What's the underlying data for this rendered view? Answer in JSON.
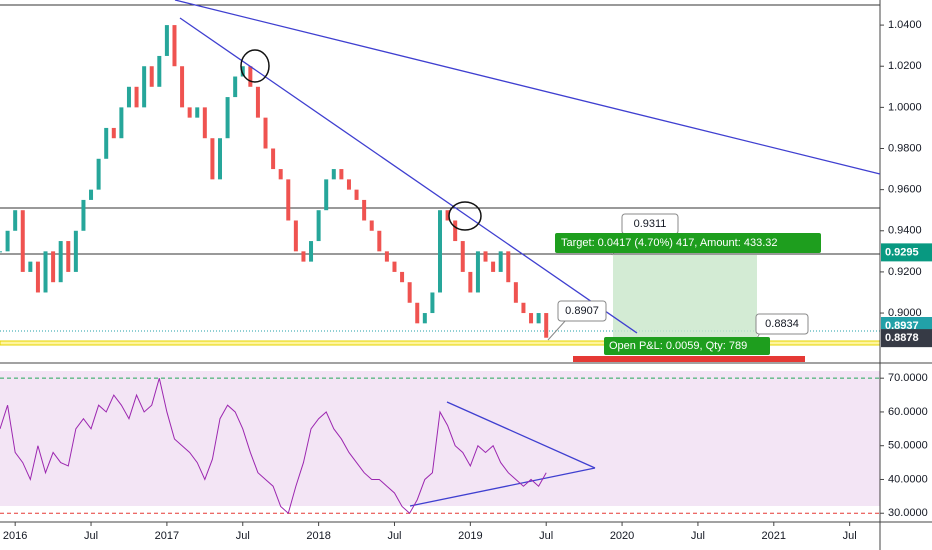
{
  "chart_data": [
    {
      "type": "candlestick",
      "x": [
        2015.9,
        2015.95,
        2016.0,
        2016.05,
        2016.1,
        2016.15,
        2016.2,
        2016.25,
        2016.3,
        2016.35,
        2016.4,
        2016.45,
        2016.5,
        2016.55,
        2016.6,
        2016.65,
        2016.7,
        2016.75,
        2016.8,
        2016.85,
        2016.9,
        2016.95,
        2017.0,
        2017.05,
        2017.1,
        2017.15,
        2017.2,
        2017.25,
        2017.3,
        2017.35,
        2017.4,
        2017.45,
        2017.5,
        2017.55,
        2017.6,
        2017.65,
        2017.7,
        2017.75,
        2017.8,
        2017.85,
        2017.9,
        2017.95,
        2018.0,
        2018.05,
        2018.1,
        2018.15,
        2018.2,
        2018.25,
        2018.3,
        2018.35,
        2018.4,
        2018.45,
        2018.5,
        2018.55,
        2018.6,
        2018.65,
        2018.7,
        2018.75,
        2018.8,
        2018.85,
        2018.9,
        2018.95,
        2019.0,
        2019.05,
        2019.1,
        2019.15,
        2019.2,
        2019.25,
        2019.3,
        2019.35,
        2019.4,
        2019.45,
        2019.5
      ],
      "values": [
        0.93,
        0.94,
        0.95,
        0.92,
        0.925,
        0.91,
        0.93,
        0.915,
        0.935,
        0.92,
        0.94,
        0.955,
        0.96,
        0.975,
        0.99,
        0.985,
        1.0,
        1.01,
        1.0,
        1.02,
        1.01,
        1.025,
        1.04,
        1.02,
        1.0,
        0.995,
        1.0,
        0.985,
        0.965,
        0.985,
        1.005,
        1.015,
        1.02,
        1.01,
        0.995,
        0.98,
        0.97,
        0.965,
        0.945,
        0.93,
        0.925,
        0.935,
        0.95,
        0.965,
        0.97,
        0.965,
        0.96,
        0.955,
        0.945,
        0.94,
        0.93,
        0.925,
        0.92,
        0.915,
        0.905,
        0.895,
        0.9,
        0.91,
        0.95,
        0.945,
        0.935,
        0.92,
        0.91,
        0.93,
        0.925,
        0.92,
        0.93,
        0.915,
        0.905,
        0.9,
        0.895,
        0.9,
        0.888
      ],
      "up_color": "#26a69a",
      "down_color": "#ef5350",
      "xlim": [
        2015.9,
        2021.7
      ],
      "ylim": [
        0.8762,
        1.0522
      ],
      "yticks": [
        {
          "value": 1.04,
          "label": "1.0400"
        },
        {
          "value": 1.02,
          "label": "1.0200"
        },
        {
          "value": 1.0,
          "label": "1.0000"
        },
        {
          "value": 0.98,
          "label": "0.9800"
        },
        {
          "value": 0.96,
          "label": "0.9600"
        },
        {
          "value": 0.94,
          "label": "0.9400"
        },
        {
          "value": 0.92,
          "label": "0.9200"
        },
        {
          "value": 0.9,
          "label": "0.9000"
        }
      ],
      "price_badges": [
        {
          "value": 0.9295,
          "color": "#089981"
        },
        {
          "value": 0.8937,
          "color": "#22a1a8"
        },
        {
          "value": 0.8878,
          "color": "#363a45"
        }
      ],
      "callouts": [
        0.9311,
        0.8907,
        0.8834
      ],
      "target_label": "Target: 0.0417 (4.70%) 417, Amount: 433.32",
      "pnl_label": "Open P&L: 0.0059, Qty: 789"
    },
    {
      "type": "line",
      "x": [
        2015.9,
        2015.95,
        2016.0,
        2016.05,
        2016.1,
        2016.15,
        2016.2,
        2016.25,
        2016.3,
        2016.35,
        2016.4,
        2016.45,
        2016.5,
        2016.55,
        2016.6,
        2016.65,
        2016.7,
        2016.75,
        2016.8,
        2016.85,
        2016.9,
        2016.95,
        2017.0,
        2017.05,
        2017.1,
        2017.15,
        2017.2,
        2017.25,
        2017.3,
        2017.35,
        2017.4,
        2017.45,
        2017.5,
        2017.55,
        2017.6,
        2017.65,
        2017.7,
        2017.75,
        2017.8,
        2017.85,
        2017.9,
        2017.95,
        2018.0,
        2018.05,
        2018.1,
        2018.15,
        2018.2,
        2018.25,
        2018.3,
        2018.35,
        2018.4,
        2018.45,
        2018.5,
        2018.55,
        2018.6,
        2018.65,
        2018.7,
        2018.75,
        2018.8,
        2018.85,
        2018.9,
        2018.95,
        2019.0,
        2019.05,
        2019.1,
        2019.15,
        2019.2,
        2019.25,
        2019.3,
        2019.35,
        2019.4,
        2019.45,
        2019.5
      ],
      "values": [
        55,
        62,
        48,
        45,
        40,
        50,
        42,
        48,
        45,
        44,
        55,
        58,
        55,
        62,
        60,
        65,
        62,
        58,
        65,
        60,
        62,
        70,
        60,
        52,
        50,
        48,
        45,
        40,
        46,
        58,
        62,
        60,
        55,
        48,
        42,
        40,
        38,
        32,
        30,
        38,
        45,
        55,
        58,
        60,
        55,
        52,
        48,
        45,
        42,
        40,
        40,
        38,
        36,
        32,
        30,
        34,
        40,
        42,
        60,
        56,
        50,
        48,
        44,
        50,
        48,
        50,
        45,
        42,
        40,
        38,
        40,
        38,
        42
      ],
      "color": "#9c27b0",
      "xlim": [
        2015.9,
        2021.7
      ],
      "ylim": [
        27.7,
        74.2
      ],
      "yticks": [
        {
          "value": 70,
          "label": "70.0000"
        },
        {
          "value": 60,
          "label": "60.0000"
        },
        {
          "value": 50,
          "label": "50.0000"
        },
        {
          "value": 40,
          "label": "40.0000"
        },
        {
          "value": 30,
          "label": "30.0000"
        }
      ],
      "xticks": [
        2016,
        {
          "value": 2016.5,
          "label": "Jul"
        },
        2017,
        {
          "value": 2017.5,
          "label": "Jul"
        },
        2018,
        {
          "value": 2018.5,
          "label": "Jul"
        },
        2019,
        {
          "value": 2019.5,
          "label": "Jul"
        },
        2020,
        {
          "value": 2020.5,
          "label": "Jul"
        },
        2021,
        {
          "value": 2021.5,
          "label": "Jul"
        }
      ]
    }
  ]
}
